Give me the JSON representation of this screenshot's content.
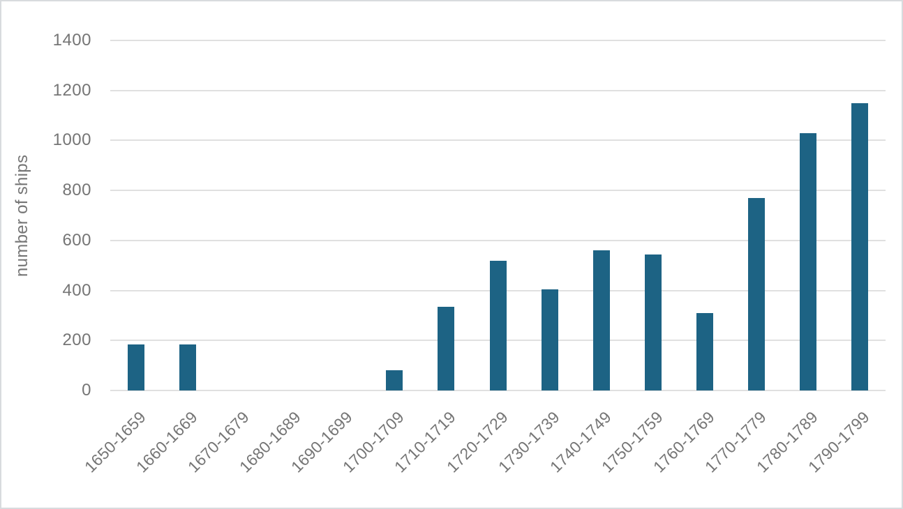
{
  "chart_data": {
    "type": "bar",
    "title": "",
    "xlabel": "",
    "ylabel": "number of ships",
    "categories": [
      "1650-1659",
      "1660-1669",
      "1670-1679",
      "1680-1689",
      "1690-1699",
      "1700-1709",
      "1710-1719",
      "1720-1729",
      "1730-1739",
      "1740-1749",
      "1750-1759",
      "1760-1769",
      "1770-1779",
      "1780-1789",
      "1790-1799"
    ],
    "values": [
      185,
      185,
      0,
      0,
      0,
      80,
      335,
      520,
      405,
      560,
      545,
      310,
      770,
      1030,
      1150
    ],
    "ylim": [
      0,
      1400
    ],
    "yticks": [
      0,
      200,
      400,
      600,
      800,
      1000,
      1200,
      1400
    ],
    "grid": "horizontal",
    "legend": "none",
    "colors": {
      "bar": "#1d6384",
      "gridline": "#e0e0e0",
      "label": "#757575",
      "frame_border": "#d8dbde",
      "background": "#ffffff"
    }
  }
}
